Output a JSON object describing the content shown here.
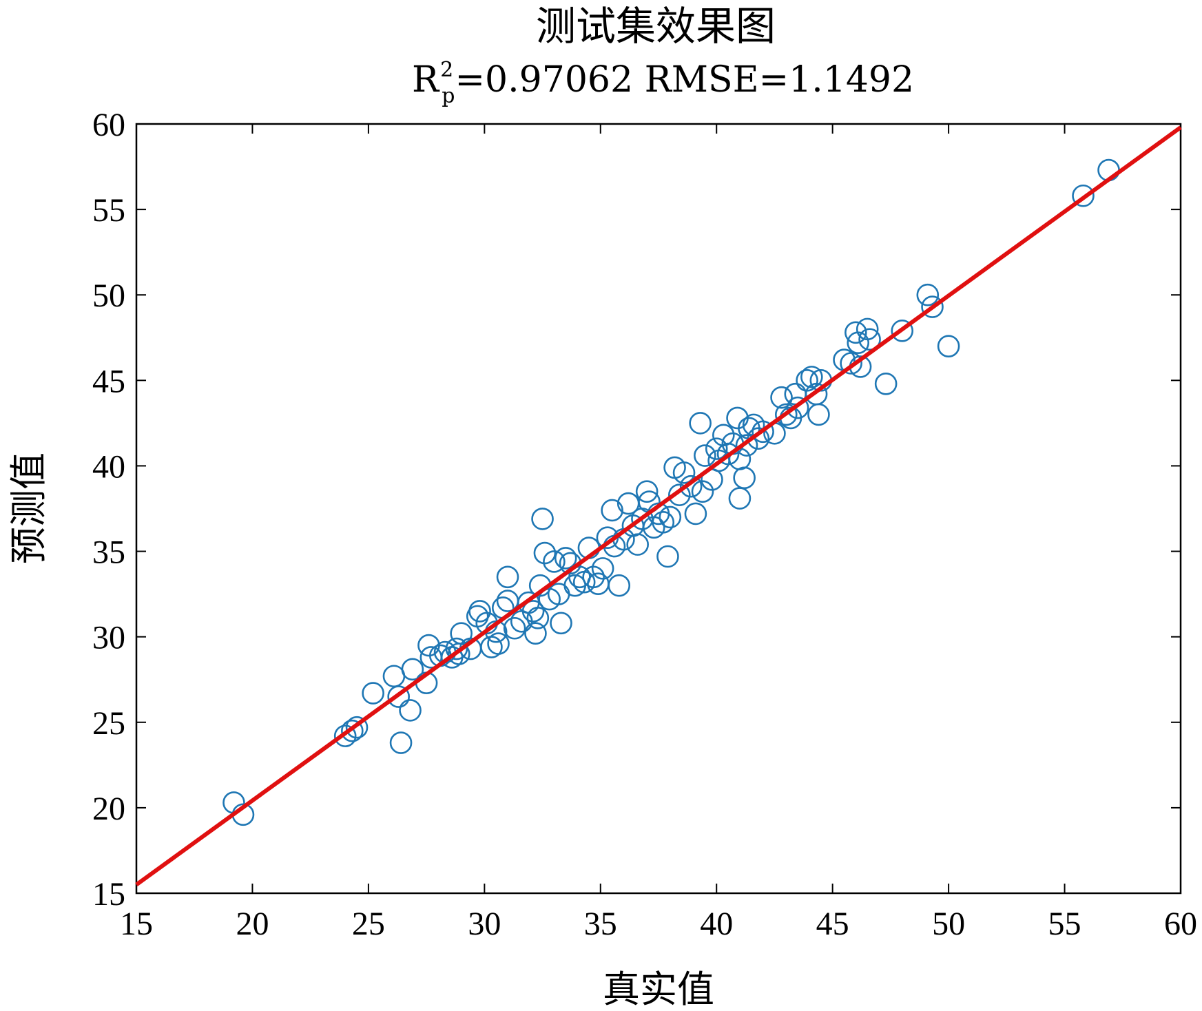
{
  "chart_data": {
    "type": "scatter",
    "title": "测试集效果图",
    "subtitle_parts": {
      "r_main": "R",
      "r_sup": "2",
      "r_sub": "p",
      "rest": "=0.97062 RMSE=1.1492"
    },
    "xlabel": "真实值",
    "ylabel": "预测值",
    "xlim": [
      15,
      60
    ],
    "ylim": [
      15,
      60
    ],
    "xticks": [
      "15",
      "20",
      "25",
      "30",
      "35",
      "40",
      "45",
      "50",
      "55",
      "60"
    ],
    "yticks": [
      "15",
      "20",
      "25",
      "30",
      "35",
      "40",
      "45",
      "50",
      "55",
      "60"
    ],
    "grid": false,
    "legend": "none",
    "colors": {
      "points": "#1f77b4",
      "fit_line": "#e01010",
      "axes": "#000000"
    },
    "fit_line": {
      "x": [
        15,
        60
      ],
      "y": [
        15.5,
        59.8
      ]
    },
    "series": [
      {
        "marker": "open-circle",
        "x": [
          19.2,
          19.6,
          24.0,
          24.3,
          24.5,
          25.2,
          26.1,
          26.3,
          26.4,
          26.8,
          26.9,
          27.5,
          27.6,
          27.7,
          28.1,
          28.3,
          28.6,
          28.8,
          28.9,
          29.0,
          29.4,
          29.7,
          29.8,
          30.1,
          30.3,
          30.5,
          30.6,
          30.8,
          31.0,
          31.0,
          31.3,
          31.6,
          31.9,
          32.1,
          32.2,
          32.3,
          32.4,
          32.5,
          32.6,
          32.8,
          33.0,
          33.2,
          33.3,
          33.5,
          33.7,
          33.9,
          34.1,
          34.3,
          34.5,
          34.7,
          34.9,
          35.1,
          35.3,
          35.5,
          35.6,
          35.8,
          36.0,
          36.2,
          36.4,
          36.6,
          36.8,
          37.0,
          37.1,
          37.3,
          37.5,
          37.7,
          37.9,
          38.0,
          38.2,
          38.4,
          38.6,
          38.9,
          39.1,
          39.3,
          39.4,
          39.5,
          39.8,
          40.0,
          40.1,
          40.3,
          40.5,
          40.7,
          40.9,
          41.0,
          41.0,
          41.2,
          41.3,
          41.4,
          41.6,
          41.8,
          42.0,
          42.5,
          42.8,
          43.0,
          43.2,
          43.4,
          43.5,
          43.9,
          44.1,
          44.3,
          44.4,
          44.5,
          45.5,
          45.8,
          46.0,
          46.1,
          46.2,
          46.5,
          46.6,
          47.3,
          48.0,
          49.1,
          49.3,
          50.0,
          55.8,
          56.9
        ],
        "y": [
          20.3,
          19.6,
          24.2,
          24.5,
          24.7,
          26.7,
          27.7,
          26.5,
          23.8,
          25.7,
          28.1,
          27.3,
          29.5,
          28.8,
          28.9,
          29.1,
          28.8,
          29.3,
          29.0,
          30.2,
          29.3,
          31.2,
          31.5,
          30.8,
          29.4,
          30.3,
          29.6,
          31.7,
          32.1,
          33.5,
          30.5,
          30.9,
          32.0,
          31.5,
          30.2,
          31.1,
          33.0,
          36.9,
          34.9,
          32.2,
          34.4,
          32.5,
          30.8,
          34.6,
          34.3,
          33.0,
          33.5,
          33.2,
          35.2,
          33.5,
          33.1,
          34.0,
          35.8,
          37.4,
          35.3,
          33.0,
          35.7,
          37.8,
          36.5,
          35.4,
          36.9,
          38.5,
          37.9,
          36.4,
          37.2,
          36.7,
          34.7,
          37.0,
          39.9,
          38.3,
          39.6,
          38.8,
          37.2,
          42.5,
          38.5,
          40.6,
          39.2,
          41.0,
          40.3,
          41.8,
          40.7,
          41.3,
          42.8,
          38.1,
          40.4,
          39.3,
          41.2,
          42.2,
          42.4,
          41.6,
          42.0,
          41.9,
          44.0,
          43.0,
          42.8,
          44.2,
          43.4,
          45.0,
          45.2,
          44.2,
          43.0,
          45.0,
          46.2,
          46.0,
          47.8,
          47.2,
          45.8,
          48.0,
          47.4,
          44.8,
          47.9,
          50.0,
          49.3,
          47.0,
          55.8,
          57.3
        ]
      }
    ]
  }
}
